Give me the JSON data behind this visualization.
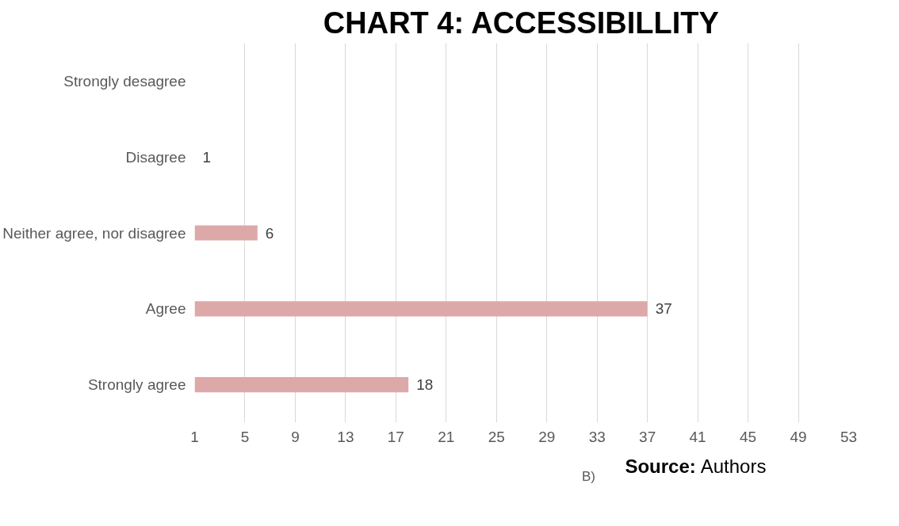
{
  "chart_data": {
    "type": "bar",
    "orientation": "horizontal",
    "title": "CHART 4: ACCESSIBILLITY",
    "categories": [
      "Strongly desagree",
      "Disagree",
      "Neither agree, nor disagree",
      "Agree",
      "Strongly agree"
    ],
    "series": [
      {
        "name": "B)",
        "color": "#dda9a8",
        "values": [
          null,
          1,
          6,
          37,
          18
        ]
      }
    ],
    "xlim": [
      1,
      53
    ],
    "xticks": [
      1,
      5,
      9,
      13,
      17,
      21,
      25,
      29,
      33,
      37,
      41,
      45,
      49,
      53
    ],
    "grid": "x",
    "legend": "bottom",
    "data_labels": true,
    "annotations": [
      "Source: Authors"
    ]
  }
}
